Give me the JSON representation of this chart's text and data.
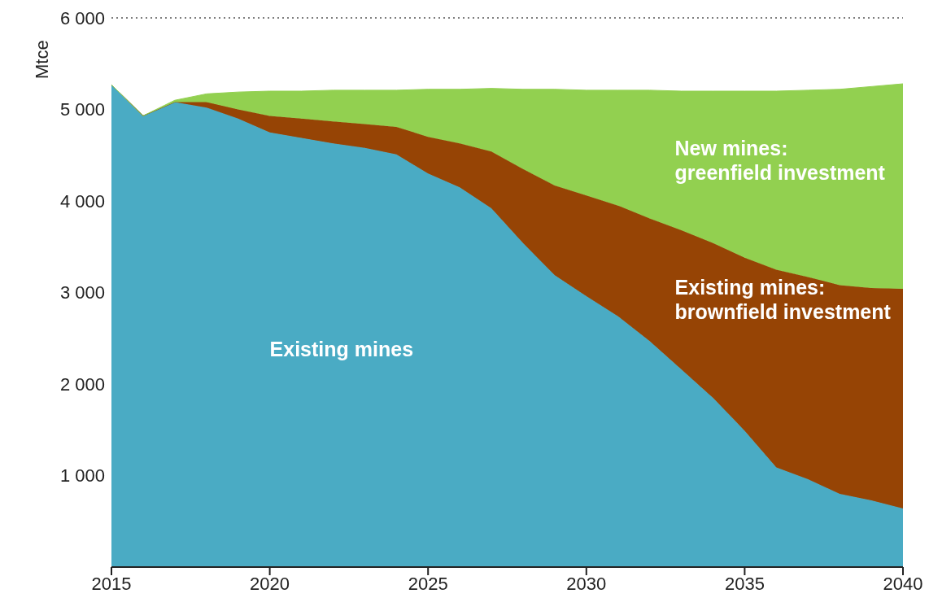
{
  "chart_data": {
    "type": "area",
    "stacked": true,
    "ylabel": "Mtce",
    "x": [
      2015,
      2016,
      2017,
      2018,
      2019,
      2020,
      2021,
      2022,
      2023,
      2024,
      2025,
      2026,
      2027,
      2028,
      2029,
      2030,
      2031,
      2032,
      2033,
      2034,
      2035,
      2036,
      2037,
      2038,
      2039,
      2040
    ],
    "series": [
      {
        "name": "Existing mines",
        "color": "#4aabc4",
        "values": [
          5270,
          4930,
          5080,
          5020,
          4900,
          4750,
          4690,
          4630,
          4580,
          4510,
          4300,
          4150,
          3920,
          3540,
          3190,
          2960,
          2740,
          2470,
          2160,
          1850,
          1490,
          1090,
          960,
          800,
          730,
          640
        ]
      },
      {
        "name": "Existing mines: brownfield investment",
        "color": "#964405",
        "values": [
          0,
          0,
          0,
          60,
          100,
          180,
          210,
          240,
          260,
          300,
          400,
          480,
          620,
          810,
          980,
          1100,
          1210,
          1340,
          1520,
          1690,
          1890,
          2160,
          2210,
          2280,
          2320,
          2400
        ]
      },
      {
        "name": "New mines: greenfield investment",
        "color": "#92d050",
        "values": [
          0,
          0,
          20,
          90,
          190,
          270,
          300,
          340,
          370,
          400,
          520,
          590,
          690,
          870,
          1050,
          1150,
          1260,
          1400,
          1520,
          1660,
          1820,
          1950,
          2040,
          2140,
          2200,
          2240
        ]
      }
    ],
    "xlim": [
      2015,
      2040
    ],
    "xticks": [
      2015,
      2020,
      2025,
      2030,
      2035,
      2040
    ],
    "ylim": [
      0,
      6000
    ],
    "yticks": [
      {
        "value": 1000,
        "label": "1 000"
      },
      {
        "value": 2000,
        "label": "2 000"
      },
      {
        "value": 3000,
        "label": "3 000"
      },
      {
        "value": 4000,
        "label": "4 000"
      },
      {
        "value": 5000,
        "label": "5 000"
      },
      {
        "value": 6000,
        "label": "6 000"
      }
    ],
    "ref_lines": [
      {
        "axis": "y",
        "value": 6000,
        "color": "#7f7f7f",
        "line_style": "dotted"
      }
    ],
    "grid": false,
    "legend": false
  }
}
